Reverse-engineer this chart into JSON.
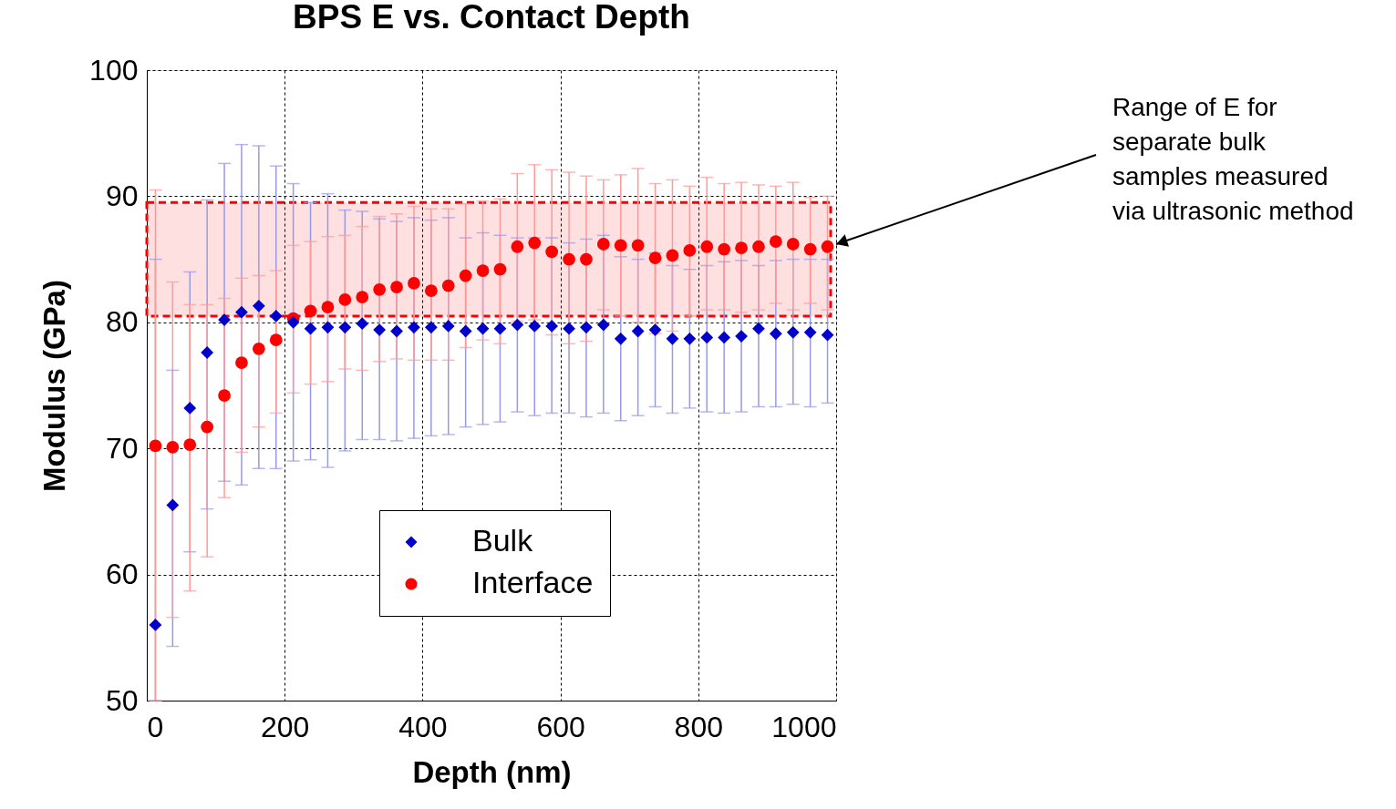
{
  "chart_data": {
    "type": "scatter",
    "title": "BPS E vs. Contact Depth",
    "xlabel": "Depth (nm)",
    "ylabel": "Modulus (GPa)",
    "x": [
      12.5,
      37.5,
      62.5,
      87.5,
      112.5,
      137.5,
      162.5,
      187.5,
      212.5,
      237.5,
      262.5,
      287.5,
      312.5,
      337.5,
      362.5,
      387.5,
      412.5,
      437.5,
      462.5,
      487.5,
      512.5,
      537.5,
      562.5,
      587.5,
      612.5,
      637.5,
      662.5,
      687.5,
      712.5,
      737.5,
      762.5,
      787.5,
      812.5,
      837.5,
      862.5,
      887.5,
      912.5,
      937.5,
      962.5,
      987.5
    ],
    "xlim": [
      0,
      1000
    ],
    "xticks": [
      0,
      200,
      400,
      600,
      800,
      {
        "value": 1000,
        "label": "1000"
      }
    ],
    "ylim": [
      50,
      100
    ],
    "yticks": [
      50,
      60,
      70,
      80,
      90,
      100
    ],
    "grid": true,
    "legend": "bottom",
    "series": [
      {
        "name": "Bulk",
        "color": "#0000cc",
        "marker": "diamond",
        "values": [
          56.0,
          65.5,
          73.2,
          77.6,
          80.2,
          80.8,
          81.3,
          80.5,
          80.0,
          79.5,
          79.6,
          79.6,
          79.9,
          79.4,
          79.3,
          79.6,
          79.6,
          79.7,
          79.3,
          79.5,
          79.5,
          79.8,
          79.7,
          79.7,
          79.5,
          79.6,
          79.8,
          78.7,
          79.3,
          79.4,
          78.7,
          78.7,
          78.8,
          78.8,
          78.9,
          79.5,
          79.1,
          79.2,
          79.2,
          79.0
        ],
        "errors": [
          [
            50,
            85.0
          ],
          [
            54.3,
            76.2
          ],
          [
            61.8,
            84.0
          ],
          [
            65.2,
            89.7
          ],
          [
            67.4,
            92.6
          ],
          [
            67.1,
            94.1
          ],
          [
            68.4,
            94.0
          ],
          [
            68.4,
            92.4
          ],
          [
            69.0,
            91.0
          ],
          [
            69.1,
            89.5
          ],
          [
            68.5,
            90.2
          ],
          [
            69.8,
            88.9
          ],
          [
            70.7,
            88.8
          ],
          [
            70.7,
            88.2
          ],
          [
            70.6,
            88.0
          ],
          [
            70.8,
            88.3
          ],
          [
            71.0,
            88.1
          ],
          [
            71.1,
            88.3
          ],
          [
            71.7,
            86.7
          ],
          [
            71.9,
            87.1
          ],
          [
            72.1,
            86.9
          ],
          [
            72.9,
            86.7
          ],
          [
            72.6,
            86.7
          ],
          [
            72.8,
            86.7
          ],
          [
            72.8,
            86.3
          ],
          [
            72.5,
            86.6
          ],
          [
            72.8,
            86.9
          ],
          [
            72.2,
            85.2
          ],
          [
            72.6,
            85.0
          ],
          [
            73.3,
            85.5
          ],
          [
            72.8,
            84.5
          ],
          [
            73.2,
            84.2
          ],
          [
            72.9,
            84.5
          ],
          [
            72.8,
            84.8
          ],
          [
            72.9,
            84.9
          ],
          [
            73.3,
            84.5
          ],
          [
            73.3,
            84.9
          ],
          [
            73.5,
            85.0
          ],
          [
            73.3,
            85.0
          ],
          [
            73.6,
            85.0
          ]
        ]
      },
      {
        "name": "Interface",
        "color": "#ff0000",
        "marker": "circle",
        "values": [
          70.2,
          70.1,
          70.3,
          71.7,
          74.2,
          76.8,
          77.9,
          78.6,
          80.3,
          80.9,
          81.2,
          81.8,
          82.0,
          82.6,
          82.8,
          83.1,
          82.5,
          82.9,
          83.7,
          84.1,
          84.2,
          86.0,
          86.3,
          85.6,
          85.0,
          85.0,
          86.2,
          86.1,
          86.1,
          85.1,
          85.3,
          85.7,
          86.0,
          85.8,
          85.9,
          86.0,
          86.4,
          86.2,
          85.8,
          86.0
        ],
        "errors": [
          [
            50,
            90.5
          ],
          [
            56.6,
            83.2
          ],
          [
            58.7,
            81.4
          ],
          [
            61.4,
            81.4
          ],
          [
            66.1,
            81.9
          ],
          [
            69.7,
            83.5
          ],
          [
            71.7,
            83.7
          ],
          [
            72.8,
            84.1
          ],
          [
            74.4,
            86.1
          ],
          [
            75.1,
            86.4
          ],
          [
            75.3,
            86.8
          ],
          [
            76.3,
            86.9
          ],
          [
            76.2,
            87.6
          ],
          [
            76.9,
            88.4
          ],
          [
            77.1,
            88.6
          ],
          [
            77.0,
            89.2
          ],
          [
            77.0,
            89.0
          ],
          [
            77.0,
            89.0
          ],
          [
            78.0,
            89.4
          ],
          [
            78.6,
            89.6
          ],
          [
            78.3,
            89.8
          ],
          [
            80.1,
            91.8
          ],
          [
            80.2,
            92.5
          ],
          [
            79.0,
            92.1
          ],
          [
            78.3,
            91.9
          ],
          [
            78.5,
            91.6
          ],
          [
            81.0,
            91.3
          ],
          [
            80.5,
            91.7
          ],
          [
            80.0,
            92.2
          ],
          [
            79.1,
            91.0
          ],
          [
            79.3,
            91.3
          ],
          [
            80.5,
            90.8
          ],
          [
            81.0,
            91.5
          ],
          [
            81.0,
            91.0
          ],
          [
            80.8,
            91.1
          ],
          [
            81.0,
            90.9
          ],
          [
            81.5,
            90.8
          ],
          [
            81.0,
            91.1
          ],
          [
            81.5,
            89.9
          ],
          [
            81.0,
            90.0
          ]
        ]
      }
    ],
    "bands": [
      {
        "axis": "y",
        "from": 80.5,
        "to": 89.5,
        "color": "#ff0000"
      }
    ],
    "annotations": [
      {
        "text": "Range of E for\nseparate bulk\nsamples measured\nvia ultrasonic method",
        "x": 1000,
        "y": 86.2
      }
    ]
  }
}
